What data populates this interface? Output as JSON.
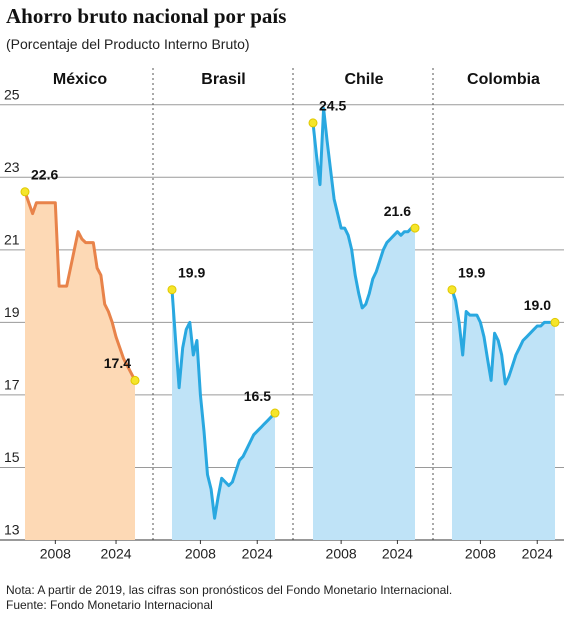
{
  "title": "Ahorro bruto nacional por país",
  "subtitle": "(Porcentaje del Producto Interno Bruto)",
  "note": "Nota: A partir de 2019, las cifras son pronósticos del Fondo Monetario Internacional.",
  "source": "Fuente: Fondo Monetario Internacional",
  "chart_data": [
    {
      "type": "area",
      "title": "México",
      "color": "#e8834a",
      "fill": "#fdd9b5",
      "x": [
        2000,
        2001,
        2002,
        2003,
        2004,
        2005,
        2006,
        2007,
        2008,
        2009,
        2010,
        2011,
        2012,
        2013,
        2014,
        2015,
        2016,
        2017,
        2018,
        2019,
        2020,
        2021,
        2022,
        2023,
        2024,
        2025,
        2026,
        2027,
        2028,
        2029
      ],
      "values": [
        22.6,
        22.3,
        22.0,
        22.3,
        22.3,
        22.3,
        22.3,
        22.3,
        22.3,
        20.0,
        20.0,
        20.0,
        20.5,
        21.0,
        21.5,
        21.3,
        21.2,
        21.2,
        21.2,
        20.5,
        20.3,
        19.5,
        19.3,
        19.0,
        18.6,
        18.3,
        18.0,
        17.8,
        17.6,
        17.4
      ],
      "xlim": [
        2000,
        2029
      ],
      "xticks": [
        2008,
        2024
      ],
      "ylim": [
        13,
        25.6
      ],
      "yticks": [
        13,
        15,
        17,
        19,
        21,
        23,
        25
      ],
      "grid": true
    },
    {
      "type": "area",
      "title": "Brasil",
      "color": "#29a8e0",
      "fill": "#bfe3f7",
      "x": [
        2000,
        2001,
        2002,
        2003,
        2004,
        2005,
        2006,
        2007,
        2008,
        2009,
        2010,
        2011,
        2012,
        2013,
        2014,
        2015,
        2016,
        2017,
        2018,
        2019,
        2020,
        2021,
        2022,
        2023,
        2024,
        2025,
        2026,
        2027,
        2028,
        2029
      ],
      "values": [
        19.9,
        18.5,
        17.2,
        18.3,
        18.8,
        19.0,
        18.1,
        18.5,
        17.0,
        16.0,
        14.8,
        14.4,
        13.6,
        14.2,
        14.7,
        14.6,
        14.5,
        14.6,
        14.9,
        15.2,
        15.3,
        15.5,
        15.7,
        15.9,
        16.0,
        16.1,
        16.2,
        16.3,
        16.4,
        16.5
      ],
      "xlim": [
        2000,
        2029
      ],
      "xticks": [
        2008,
        2024
      ],
      "ylim": [
        13,
        25.6
      ]
    },
    {
      "type": "area",
      "title": "Chile",
      "color": "#29a8e0",
      "fill": "#bfe3f7",
      "x": [
        2000,
        2001,
        2002,
        2003,
        2004,
        2005,
        2006,
        2007,
        2008,
        2009,
        2010,
        2011,
        2012,
        2013,
        2014,
        2015,
        2016,
        2017,
        2018,
        2019,
        2020,
        2021,
        2022,
        2023,
        2024,
        2025,
        2026,
        2027,
        2028,
        2029
      ],
      "values": [
        24.5,
        23.6,
        22.8,
        24.9,
        24.0,
        23.2,
        22.4,
        22.0,
        21.6,
        21.6,
        21.4,
        21.0,
        20.3,
        19.8,
        19.4,
        19.5,
        19.8,
        20.2,
        20.4,
        20.7,
        21.0,
        21.2,
        21.3,
        21.4,
        21.5,
        21.4,
        21.5,
        21.5,
        21.6,
        21.6
      ],
      "xlim": [
        2000,
        2029
      ],
      "xticks": [
        2008,
        2024
      ],
      "ylim": [
        13,
        25.6
      ]
    },
    {
      "type": "area",
      "title": "Colombia",
      "color": "#29a8e0",
      "fill": "#bfe3f7",
      "x": [
        2000,
        2001,
        2002,
        2003,
        2004,
        2005,
        2006,
        2007,
        2008,
        2009,
        2010,
        2011,
        2012,
        2013,
        2014,
        2015,
        2016,
        2017,
        2018,
        2019,
        2020,
        2021,
        2022,
        2023,
        2024,
        2025,
        2026,
        2027,
        2028,
        2029
      ],
      "values": [
        19.9,
        19.6,
        19.0,
        18.1,
        19.3,
        19.2,
        19.2,
        19.2,
        19.0,
        18.6,
        18.0,
        17.4,
        18.7,
        18.5,
        18.1,
        17.3,
        17.5,
        17.8,
        18.1,
        18.3,
        18.5,
        18.6,
        18.7,
        18.8,
        18.9,
        18.9,
        19.0,
        19.0,
        19.0,
        19.0
      ],
      "value_labels": [
        null,
        null,
        null,
        null,
        null,
        null,
        null,
        null,
        null,
        null,
        null,
        null,
        null,
        null,
        null,
        null,
        null,
        null,
        null,
        null,
        null,
        null,
        null,
        null,
        null,
        null,
        null,
        null,
        null,
        "19.0"
      ],
      "xlim": [
        2000,
        2029
      ],
      "xticks": [
        2008,
        2024
      ],
      "ylim": [
        13,
        25.6
      ]
    }
  ]
}
